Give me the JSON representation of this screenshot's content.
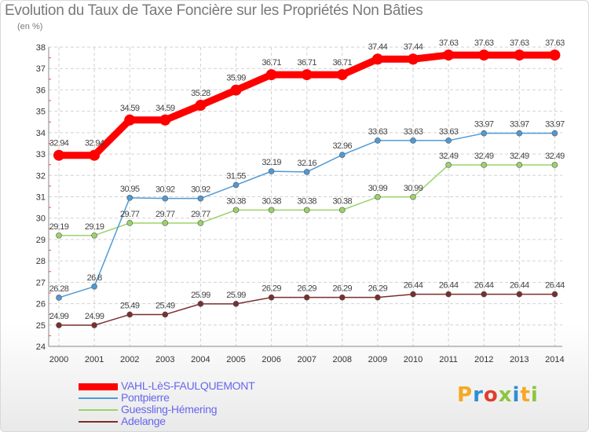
{
  "header": {
    "title": "Evolution du Taux de Taxe Foncière sur les Propriétés Non Bâties",
    "subtitle": "(en %)"
  },
  "brand": {
    "logo_text": "Proxiti",
    "colors": [
      "#f7a823",
      "#2d8fd5",
      "#e23c2c",
      "#8cc63f",
      "#2d8fd5",
      "#f7a823",
      "#8cc63f"
    ]
  },
  "chart_data": {
    "type": "line",
    "title": "Evolution du Taux de Taxe Foncière sur les Propriétés Non Bâties",
    "ylabel": "(en %)",
    "xlabel": "",
    "ylim": [
      24,
      38
    ],
    "yticks": [
      24,
      25,
      26,
      27,
      28,
      29,
      30,
      31,
      32,
      33,
      34,
      35,
      36,
      37,
      38
    ],
    "grid": true,
    "x": [
      "2000",
      "2001",
      "2002",
      "2003",
      "2004",
      "2005",
      "2006",
      "2007",
      "2008",
      "2009",
      "2010",
      "2011",
      "2012",
      "2013",
      "2014"
    ],
    "series": [
      {
        "name": "VAHL-LèS-FAULQUEMONT",
        "color": "#ff0000",
        "values": [
          32.94,
          32.94,
          34.59,
          34.59,
          35.28,
          35.99,
          36.71,
          36.71,
          36.71,
          37.44,
          37.44,
          37.63,
          37.63,
          37.63,
          37.63
        ],
        "labels": [
          "32.94",
          "32.94",
          "34.59",
          "34.59",
          "35.28",
          "35.99",
          "36.71",
          "36.71",
          "36.71",
          "37.44",
          "37.44",
          "37.63",
          "37.63",
          "37.63",
          "37.63"
        ]
      },
      {
        "name": "Pontpierre",
        "color": "#4f9ad6",
        "values": [
          26.28,
          26.8,
          30.95,
          30.92,
          30.92,
          31.55,
          32.19,
          32.16,
          32.96,
          33.63,
          33.63,
          33.63,
          33.97,
          33.97,
          33.97
        ],
        "labels": [
          "26.28",
          "26.8",
          "30.95",
          "30.92",
          "30.92",
          "31.55",
          "32.19",
          "32.16",
          "32.96",
          "33.63",
          "33.63",
          "33.63",
          "33.97",
          "33.97",
          "33.97"
        ]
      },
      {
        "name": "Guessling-Hémering",
        "color": "#9ad36a",
        "values": [
          29.19,
          29.19,
          29.77,
          29.77,
          29.77,
          30.38,
          30.38,
          30.38,
          30.38,
          30.99,
          30.99,
          32.49,
          32.49,
          32.49,
          32.49
        ],
        "labels": [
          "29.19",
          "29.19",
          "29.77",
          "29.77",
          "29.77",
          "30.38",
          "30.38",
          "30.38",
          "30.38",
          "30.99",
          "30.99",
          "32.49",
          "32.49",
          "32.49",
          "32.49"
        ]
      },
      {
        "name": "Adelange",
        "color": "#7a2e2e",
        "values": [
          24.99,
          24.99,
          25.49,
          25.49,
          25.99,
          25.99,
          26.29,
          26.29,
          26.29,
          26.29,
          26.44,
          26.44,
          26.44,
          26.44,
          26.44
        ],
        "labels": [
          "24.99",
          "24.99",
          "25.49",
          "25.49",
          "25.99",
          "25.99",
          "26.29",
          "26.29",
          "26.29",
          "26.29",
          "26.44",
          "26.44",
          "26.44",
          "26.44",
          "26.44"
        ]
      }
    ],
    "legend_position": "bottom-left"
  }
}
